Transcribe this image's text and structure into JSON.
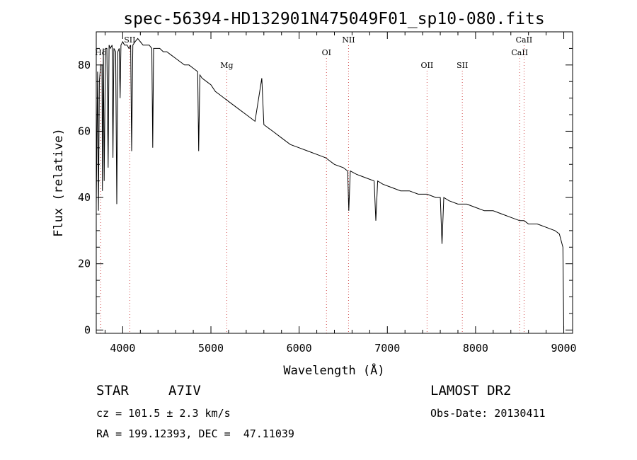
{
  "chart_data": {
    "type": "line",
    "title": "spec-56394-HD132901N475049F01_sp10-080.fits",
    "xlabel": "Wavelength (Å)",
    "ylabel": "Flux (relative)",
    "xlim": [
      3700,
      9100
    ],
    "ylim": [
      -1,
      90
    ],
    "xticks": [
      4000,
      5000,
      6000,
      7000,
      8000,
      9000
    ],
    "yticks": [
      0,
      20,
      40,
      60,
      80
    ],
    "grid": false,
    "series": [
      {
        "x": [
          3700,
          3715,
          3725,
          3735,
          3750,
          3765,
          3770,
          3780,
          3790,
          3797,
          3805,
          3820,
          3835,
          3845,
          3860,
          3880,
          3889,
          3900,
          3920,
          3933,
          3945,
          3960,
          3970,
          3980,
          4000,
          4020,
          4050,
          4070,
          4090,
          4101,
          4115,
          4140,
          4170,
          4200,
          4230,
          4260,
          4300,
          4330,
          4340,
          4350,
          4380,
          4420,
          4460,
          4500,
          4550,
          4600,
          4650,
          4700,
          4750,
          4800,
          4850,
          4861,
          4875,
          4900,
          4950,
          5000,
          5050,
          5100,
          5150,
          5200,
          5300,
          5400,
          5500,
          5577,
          5600,
          5700,
          5800,
          5900,
          6000,
          6100,
          6200,
          6300,
          6400,
          6500,
          6550,
          6563,
          6580,
          6650,
          6750,
          6850,
          6869,
          6890,
          6950,
          7050,
          7150,
          7250,
          7350,
          7450,
          7550,
          7600,
          7620,
          7640,
          7700,
          7800,
          7900,
          8000,
          8100,
          8200,
          8300,
          8400,
          8500,
          8550,
          8600,
          8700,
          8800,
          8900,
          8950,
          8990,
          9000
        ],
        "values": [
          38,
          78,
          36,
          75,
          80,
          80,
          42,
          85,
          45,
          65,
          85,
          85,
          49,
          86,
          85,
          86,
          52,
          85,
          84,
          38,
          84,
          85,
          70,
          86,
          87,
          86,
          86,
          85,
          86,
          54,
          86,
          87,
          88,
          87,
          86,
          86,
          86,
          85,
          55,
          85,
          85,
          85,
          84,
          84,
          83,
          82,
          81,
          80,
          80,
          79,
          78,
          54,
          77,
          76,
          75,
          74,
          72,
          71,
          70,
          69,
          67,
          65,
          63,
          76,
          62,
          60,
          58,
          56,
          55,
          54,
          53,
          52,
          50,
          49,
          48,
          36,
          48,
          47,
          46,
          45,
          33,
          45,
          44,
          43,
          42,
          42,
          41,
          41,
          40,
          40,
          26,
          40,
          39,
          38,
          38,
          37,
          36,
          36,
          35,
          34,
          33,
          33,
          32,
          32,
          31,
          30,
          29,
          25,
          0
        ]
      }
    ],
    "annotations": [
      {
        "label": "Hδ",
        "x": 3750,
        "row": 1
      },
      {
        "label": "SII",
        "x": 4080,
        "row": 0
      },
      {
        "label": "Mg",
        "x": 5180,
        "row": 2
      },
      {
        "label": "OI",
        "x": 6310,
        "row": 1
      },
      {
        "label": "NII",
        "x": 6560,
        "row": 0
      },
      {
        "label": "OII",
        "x": 7450,
        "row": 2
      },
      {
        "label": "SII",
        "x": 7850,
        "row": 2
      },
      {
        "label": "CaII",
        "x": 8500,
        "row": 1
      },
      {
        "label": "CaII",
        "x": 8550,
        "row": 0
      }
    ]
  },
  "info": {
    "object_type": "STAR",
    "subclass": "A7IV",
    "cz": "cz = 101.5 ± 2.3 km/s",
    "coords": "RA = 199.12393, DEC =  47.11039",
    "survey": "LAMOST DR2",
    "obs_date": "Obs-Date: 20130411"
  },
  "colors": {
    "ink": "#000000",
    "background": "#ffffff"
  }
}
